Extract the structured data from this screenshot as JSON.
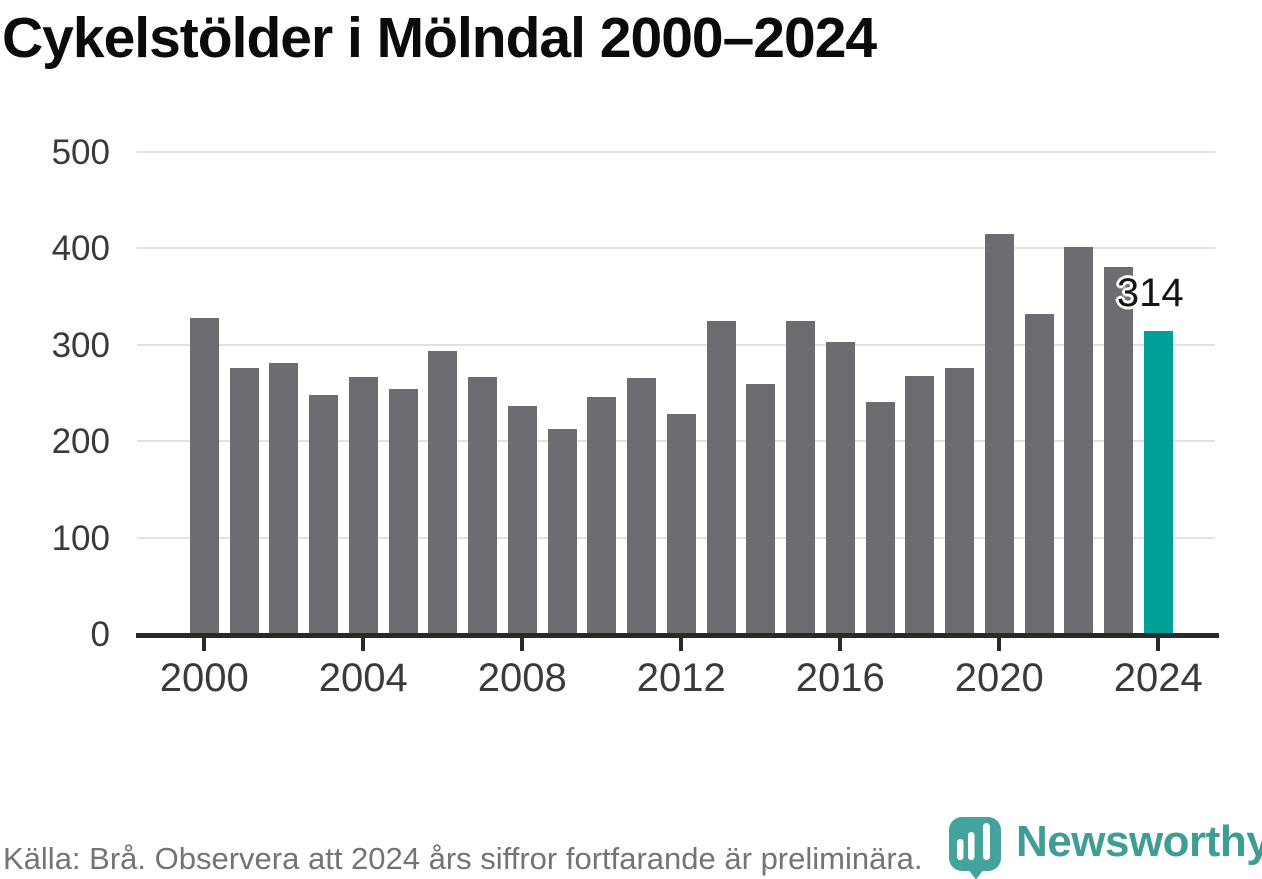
{
  "title": "Cykelstölder i Mölndal 2000–2024",
  "footer": {
    "source_note": "Källa: Brå. Observera att 2024 års siffror fortfarande är preliminära."
  },
  "branding": {
    "name": "Newsworthy",
    "logomark": "bar-chart-map-pin"
  },
  "colors": {
    "bar": "#6f6c71",
    "highlight": "#00a096",
    "grid": "#e2e2e2",
    "axis": "#2a2a2a",
    "tick_label": "#3a3a3a",
    "title": "#0b0b0b",
    "annotation": "#141414",
    "footer_text": "#747474",
    "brand": "#3f9d96",
    "brand_mark": "#44a39c"
  },
  "chart_data": {
    "type": "bar",
    "title": "Cykelstölder i Mölndal 2000–2024",
    "x": [
      2000,
      2001,
      2002,
      2003,
      2004,
      2005,
      2006,
      2007,
      2008,
      2009,
      2010,
      2011,
      2012,
      2013,
      2014,
      2015,
      2016,
      2017,
      2018,
      2019,
      2020,
      2021,
      2022,
      2023,
      2024
    ],
    "values": [
      328,
      276,
      281,
      248,
      266,
      254,
      293,
      266,
      236,
      213,
      246,
      265,
      228,
      325,
      259,
      324,
      303,
      241,
      267,
      276,
      415,
      332,
      401,
      380,
      314
    ],
    "highlight_year": 2024,
    "annotation": {
      "year": 2024,
      "label": "314"
    },
    "xlabel": "",
    "ylabel": "",
    "ylim": [
      0,
      500
    ],
    "yticks": [
      0,
      100,
      200,
      300,
      400,
      500
    ],
    "xticks": [
      2000,
      2004,
      2008,
      2012,
      2016,
      2020,
      2024
    ],
    "grid": true,
    "legend": null
  }
}
